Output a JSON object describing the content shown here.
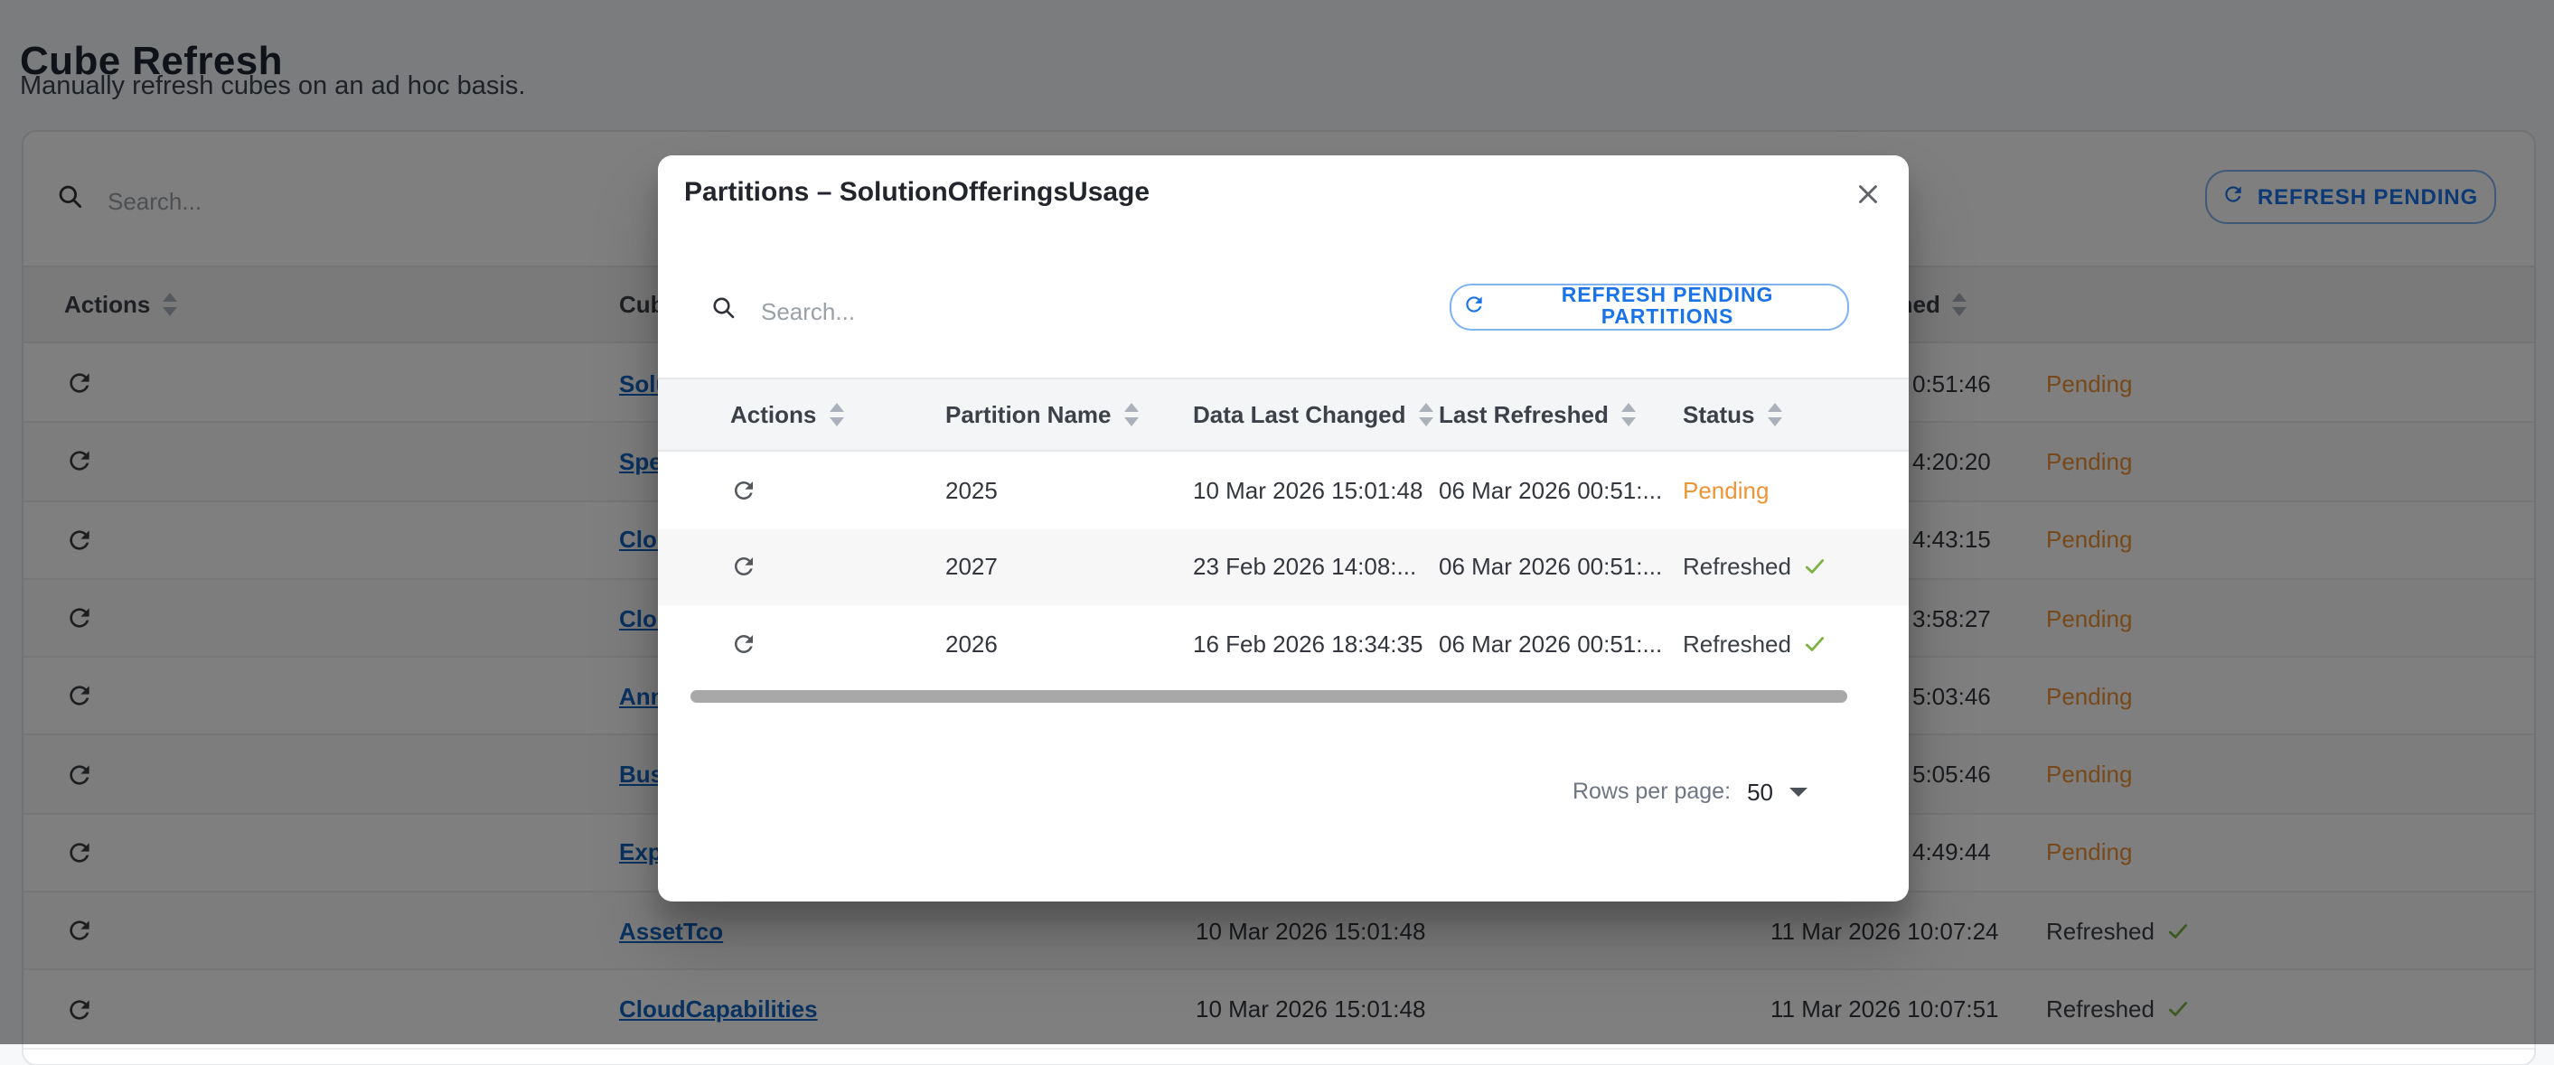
{
  "colors": {
    "accent_blue": "#1a73e8",
    "link_blue": "#1565c0",
    "pending_orange": "#ef9334",
    "refreshed_green": "#7cb342"
  },
  "page": {
    "title": "Cube Refresh",
    "subtitle": "Manually refresh cubes on an ad hoc basis.",
    "toolbar": {
      "search_placeholder": "Search...",
      "refresh_pending_label": "REFRESH PENDING"
    },
    "table": {
      "columns": [
        {
          "label": "Actions",
          "sortable": true
        },
        {
          "label": "Cube",
          "sortable": true
        },
        {
          "label": "",
          "sortable": false
        },
        {
          "label": "Last Refreshed",
          "sortable": true
        },
        {
          "label": "",
          "sortable": false
        }
      ],
      "rows": [
        {
          "cube": "Solu",
          "last_refreshed_partial": "0:51:46",
          "status": "Pending"
        },
        {
          "cube": "Spen",
          "last_refreshed_partial": "4:20:20",
          "status": "Pending"
        },
        {
          "cube": "Clou",
          "last_refreshed_partial": "4:43:15",
          "status": "Pending"
        },
        {
          "cube": "Clou",
          "last_refreshed_partial": "3:58:27",
          "status": "Pending"
        },
        {
          "cube": "Annu",
          "last_refreshed_partial": "5:03:46",
          "status": "Pending"
        },
        {
          "cube": "Busi",
          "last_refreshed_partial": "5:05:46",
          "status": "Pending"
        },
        {
          "cube": "Expe",
          "last_refreshed_partial": "4:49:44",
          "status": "Pending"
        },
        {
          "cube": "AssetTco",
          "data_last_changed": "10 Mar 2026 15:01:48",
          "last_refreshed": "11 Mar 2026 10:07:24",
          "status": "Refreshed"
        },
        {
          "cube": "CloudCapabilities",
          "data_last_changed": "10 Mar 2026 15:01:48",
          "last_refreshed": "11 Mar 2026 10:07:51",
          "status": "Refreshed"
        }
      ]
    }
  },
  "modal": {
    "title": "Partitions – SolutionOfferingsUsage",
    "search_placeholder": "Search...",
    "refresh_button_label": "REFRESH PENDING PARTITIONS",
    "table": {
      "columns": [
        {
          "label": "Actions",
          "sortable": true
        },
        {
          "label": "Partition Name",
          "sortable": true
        },
        {
          "label": "Data Last Changed",
          "sortable": true
        },
        {
          "label": "Last Refreshed",
          "sortable": true
        },
        {
          "label": "Status",
          "sortable": true
        }
      ],
      "rows": [
        {
          "partition": "2025",
          "data_last_changed": "10 Mar 2026 15:01:48",
          "last_refreshed": "06 Mar 2026 00:51:...",
          "status": "Pending"
        },
        {
          "partition": "2027",
          "data_last_changed": "23 Feb 2026 14:08:...",
          "last_refreshed": "06 Mar 2026 00:51:...",
          "status": "Refreshed"
        },
        {
          "partition": "2026",
          "data_last_changed": "16 Feb 2026 18:34:35",
          "last_refreshed": "06 Mar 2026 00:51:...",
          "status": "Refreshed"
        }
      ]
    },
    "pagination": {
      "rows_per_page_label": "Rows per page:",
      "rows_per_page_value": "50"
    }
  }
}
